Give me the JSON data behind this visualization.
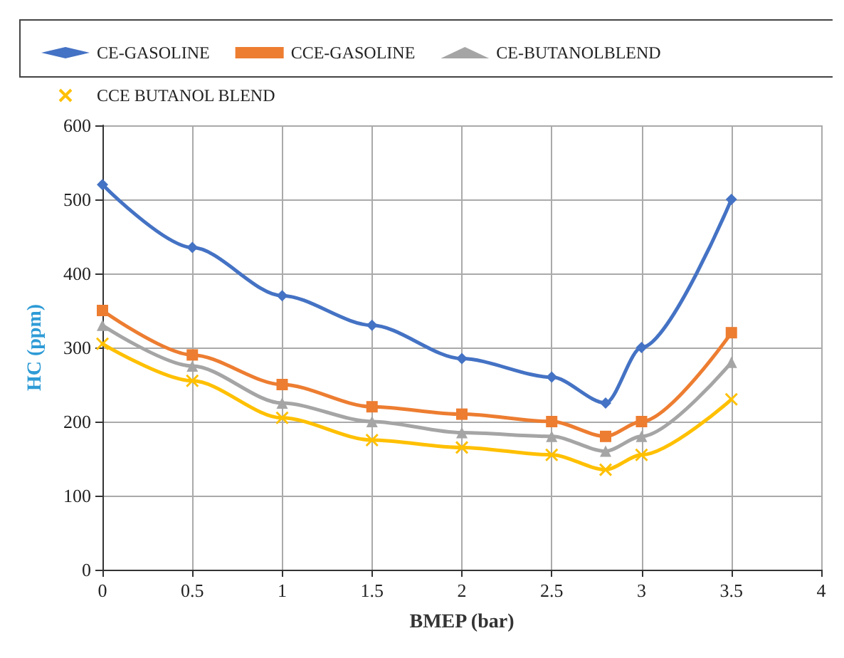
{
  "chart_data": {
    "type": "line",
    "xlabel": "BMEP (bar)",
    "ylabel": "HC (ppm)",
    "x": [
      0,
      0.5,
      1,
      1.5,
      2,
      2.5,
      2.8,
      3,
      3.5
    ],
    "xlim": [
      0,
      4
    ],
    "xticks": [
      0,
      0.5,
      1,
      1.5,
      2,
      2.5,
      3,
      3.5,
      4
    ],
    "ylim": [
      0,
      600
    ],
    "yticks": [
      0,
      100,
      200,
      300,
      400,
      500,
      600
    ],
    "grid": true,
    "legend": "top",
    "line_style": "solid",
    "series": [
      {
        "name": "CE-GASOLINE",
        "color": "#4472c4",
        "marker": "diamond",
        "values": [
          520,
          435,
          370,
          330,
          285,
          260,
          225,
          300,
          500
        ]
      },
      {
        "name": "CCE-GASOLINE",
        "color": "#ed7d31",
        "marker": "square",
        "values": [
          350,
          290,
          250,
          220,
          210,
          200,
          180,
          200,
          320
        ]
      },
      {
        "name": "CE-BUTANOLBLEND",
        "color": "#a5a5a5",
        "marker": "triangle",
        "values": [
          330,
          275,
          225,
          200,
          185,
          180,
          160,
          180,
          280
        ]
      },
      {
        "name": "CCE BUTANOL BLEND",
        "color": "#ffc000",
        "marker": "cross",
        "values": [
          305,
          255,
          205,
          175,
          165,
          155,
          135,
          155,
          230
        ]
      }
    ]
  }
}
